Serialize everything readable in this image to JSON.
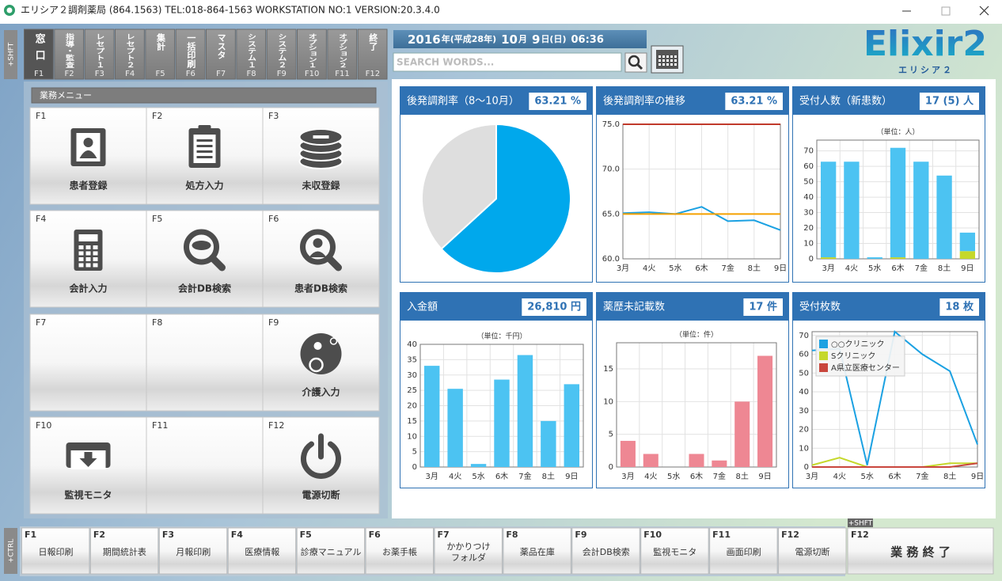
{
  "window": {
    "title": "エリシア２調剤薬局 (864.1563) TEL:018-864-1563 WORKSTATION NO:1 VERSION:20.3.4.0"
  },
  "side_labels": {
    "shift": "+SHFT",
    "ctrl": "+CTRL"
  },
  "tabs": [
    {
      "label": "窓口",
      "key": "F1"
    },
    {
      "label": "指導・監査",
      "key": "F2"
    },
    {
      "label": "レセプト１",
      "key": "F3"
    },
    {
      "label": "レセプト２",
      "key": "F4"
    },
    {
      "label": "集計",
      "key": "F5"
    },
    {
      "label": "一括印刷",
      "key": "F6"
    },
    {
      "label": "マスタ",
      "key": "F7"
    },
    {
      "label": "システム１",
      "key": "F8"
    },
    {
      "label": "システム２",
      "key": "F9"
    },
    {
      "label": "オプション１",
      "key": "F10"
    },
    {
      "label": "オプション２",
      "key": "F11"
    },
    {
      "label": "終了",
      "key": "F12"
    }
  ],
  "date": {
    "year": "2016",
    "era": "年(平成28年)",
    "month": "10",
    "month_unit": "月",
    "day": "9",
    "day_unit": "日(日)",
    "time": "06:36"
  },
  "search": {
    "placeholder": "SEARCH WORDS..."
  },
  "logo": {
    "name": "Elixir2",
    "kana": "エリシア２"
  },
  "menu": {
    "title": "業務メニュー",
    "buttons": [
      {
        "key": "F1",
        "label": "患者登録"
      },
      {
        "key": "F2",
        "label": "処方入力"
      },
      {
        "key": "F3",
        "label": "未収登録"
      },
      {
        "key": "F4",
        "label": "会計入力"
      },
      {
        "key": "F5",
        "label": "会計DB検索"
      },
      {
        "key": "F6",
        "label": "患者DB検索"
      },
      {
        "key": "F7"
      },
      {
        "key": "F8"
      },
      {
        "key": "F9",
        "label": "介護入力"
      },
      {
        "key": "F10",
        "label": "監視モニタ"
      },
      {
        "key": "F11"
      },
      {
        "key": "F12",
        "label": "電源切断"
      }
    ]
  },
  "chart_data": [
    {
      "type": "pie",
      "title": "後発調剤率（8～10月）",
      "badge": "63.21 %",
      "values": [
        63.21,
        36.79
      ],
      "colors": [
        "#00a8ec",
        "#dedede"
      ]
    },
    {
      "type": "line",
      "title": "後発調剤率の推移",
      "badge": "63.21 %",
      "categories": [
        "3月",
        "4火",
        "5水",
        "6木",
        "7金",
        "8土",
        "9日"
      ],
      "series": [
        {
          "color": "#1ba1e2",
          "values": [
            65.1,
            65.2,
            65.0,
            65.8,
            64.2,
            64.3,
            63.2
          ]
        },
        {
          "color": "#f5a000",
          "values": [
            65.0,
            65.0,
            65.0,
            65.0,
            65.0,
            65.0,
            65.0
          ]
        },
        {
          "color": "#c0392b",
          "values": [
            75.0,
            75.0,
            75.0,
            75.0,
            75.0,
            75.0,
            75.0
          ]
        }
      ],
      "ylim": [
        60,
        75
      ],
      "yticks": [
        {
          "value": 60,
          "label": "60.0"
        },
        {
          "value": 65,
          "label": "65.0"
        },
        {
          "value": 70,
          "label": "70.0"
        },
        {
          "value": 75,
          "label": "75.0"
        }
      ],
      "grid": true
    },
    {
      "type": "bar",
      "title": "受付人数（新患数）",
      "badge": "17 (5) 人",
      "subtitle": "（単位：人）",
      "categories": [
        "3月",
        "4火",
        "5水",
        "6木",
        "7金",
        "8土",
        "9日"
      ],
      "stacked": true,
      "series": [
        {
          "color": "#c5d82b",
          "values": [
            1,
            0,
            0,
            1,
            0,
            0,
            5
          ]
        },
        {
          "color": "#4cc3f2",
          "values": [
            62,
            63,
            1,
            71,
            63,
            54,
            12
          ]
        }
      ],
      "ylim": [
        0,
        77
      ],
      "yticks": [
        0,
        10,
        20,
        30,
        40,
        50,
        60,
        70
      ],
      "grid": true
    },
    {
      "type": "bar",
      "title": "入金額",
      "badge": "26,810 円",
      "subtitle": "（単位：千円）",
      "categories": [
        "3月",
        "4火",
        "5水",
        "6木",
        "7金",
        "8土",
        "9日"
      ],
      "series": [
        {
          "color": "#4cc3f2",
          "values": [
            33,
            25.5,
            1,
            28.5,
            36.5,
            15,
            27
          ]
        }
      ],
      "ylim": [
        0,
        40
      ],
      "yticks": [
        0,
        5,
        10,
        15,
        20,
        25,
        30,
        35,
        40
      ],
      "grid": true
    },
    {
      "type": "bar",
      "title": "薬歴未記載数",
      "badge": "17 件",
      "subtitle": "（単位：件）",
      "categories": [
        "3月",
        "4火",
        "5水",
        "6木",
        "7金",
        "8土",
        "9日"
      ],
      "series": [
        {
          "color": "#ee8793",
          "values": [
            4,
            2,
            0,
            2,
            1,
            10,
            17
          ]
        }
      ],
      "ylim": [
        0,
        19
      ],
      "yticks": [
        0,
        5,
        10,
        15
      ],
      "grid": true
    },
    {
      "type": "line",
      "title": "受付枚数",
      "badge": "18 枚",
      "categories": [
        "3月",
        "4火",
        "5水",
        "6木",
        "7金",
        "8土",
        "9日"
      ],
      "series": [
        {
          "name": "○○クリニック",
          "color": "#1ba1e2",
          "values": [
            62,
            63,
            1,
            72,
            60,
            51,
            12
          ]
        },
        {
          "name": "Sクリニック",
          "color": "#c5d82b",
          "values": [
            1,
            5,
            0,
            0,
            0,
            2,
            2
          ]
        },
        {
          "name": "A県立医療センター",
          "color": "#c9463d",
          "values": [
            0,
            0,
            0,
            0,
            0,
            0,
            2
          ]
        }
      ],
      "ylim": [
        0,
        72
      ],
      "yticks": [
        0,
        10,
        20,
        30,
        40,
        50,
        60,
        70
      ],
      "grid": true,
      "legend": "upper left"
    }
  ],
  "footer": {
    "keys": [
      {
        "key": "F1",
        "lines": [
          "日報印刷"
        ]
      },
      {
        "key": "F2",
        "lines": [
          "期間統計表"
        ]
      },
      {
        "key": "F3",
        "lines": [
          "月報印刷"
        ]
      },
      {
        "key": "F4",
        "lines": [
          "医療情報"
        ]
      },
      {
        "key": "F5",
        "lines": [
          "診療マニュアル"
        ]
      },
      {
        "key": "F6",
        "lines": [
          "お薬手帳"
        ]
      },
      {
        "key": "F7",
        "lines": [
          "かかりつけ",
          "フォルダ"
        ]
      },
      {
        "key": "F8",
        "lines": [
          "薬品在庫"
        ]
      },
      {
        "key": "F9",
        "lines": [
          "会計DB検索"
        ]
      },
      {
        "key": "F10",
        "lines": [
          "監視モニタ"
        ]
      },
      {
        "key": "F11",
        "lines": [
          "画面印刷"
        ]
      },
      {
        "key": "F12",
        "lines": [
          "電源切断"
        ]
      }
    ],
    "end_key": {
      "modifier": "+SHFT",
      "key": "F12",
      "label": "業 務 終 了"
    }
  }
}
